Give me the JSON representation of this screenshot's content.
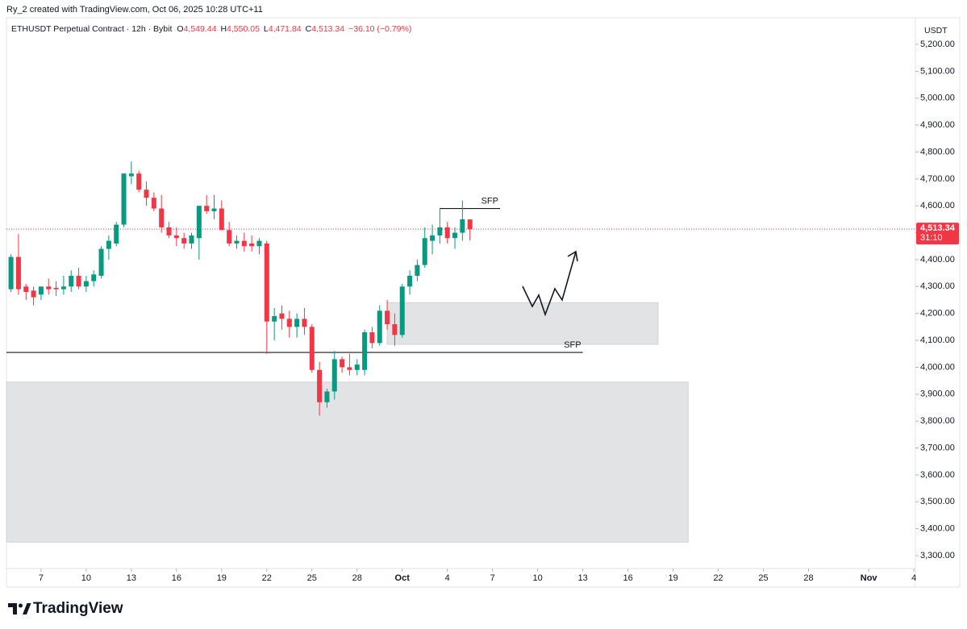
{
  "header": {
    "credit": "Ry_2 created with TradingView.com, Oct 06, 2025 10:28 UTC+11",
    "symbol": "ETHUSDT Perpetual Contract · 12h · Bybit",
    "ohlc": [
      {
        "key": "O",
        "value": "4,549.44"
      },
      {
        "key": "H",
        "value": "4,550.05"
      },
      {
        "key": "L",
        "value": "4,471.84"
      },
      {
        "key": "C",
        "value": "4,513.34"
      }
    ],
    "change": "−36.10 (−0.79%)"
  },
  "footer": "TradingView",
  "chart_data": {
    "type": "candlestick",
    "currency": "USDT",
    "up_color": "#089981",
    "down_color": "#f23645",
    "x": [
      5,
      5.5,
      6,
      6.5,
      7,
      7.5,
      8,
      8.5,
      9,
      9.5,
      10,
      10.5,
      11,
      11.5,
      12,
      12.5,
      13,
      13.5,
      14,
      14.5,
      15,
      15.5,
      16,
      16.5,
      17,
      17.5,
      18,
      18.5,
      19,
      19.5,
      20,
      20.5,
      21,
      21.5,
      22,
      22.5,
      23,
      23.5,
      24,
      24.5,
      25,
      25.5,
      26,
      26.5,
      27,
      27.5,
      28,
      28.5,
      29,
      29.5,
      30,
      30.5,
      31,
      31.5,
      32,
      32.5,
      33,
      33.5,
      34,
      34.5,
      35,
      35.5
    ],
    "open": [
      4290,
      4410,
      4300,
      4285,
      4270,
      4300,
      4295,
      4290,
      4300,
      4340,
      4300,
      4320,
      4340,
      4440,
      4460,
      4530,
      4710,
      4720,
      4660,
      4630,
      4590,
      4520,
      4490,
      4480,
      4460,
      4480,
      4600,
      4580,
      4590,
      4510,
      4460,
      4470,
      4460,
      4450,
      4460,
      4170,
      4200,
      4180,
      4150,
      4180,
      4150,
      3990,
      3870,
      3910,
      4030,
      4000,
      3990,
      3990,
      4130,
      4090,
      4210,
      4160,
      4120,
      4300,
      4340,
      4380,
      4470,
      4490,
      4520,
      4480,
      4500,
      4549.44
    ],
    "high": [
      4420,
      4495,
      4310,
      4300,
      4300,
      4330,
      4320,
      4340,
      4360,
      4370,
      4340,
      4360,
      4450,
      4490,
      4540,
      4720,
      4765,
      4730,
      4690,
      4650,
      4640,
      4540,
      4520,
      4500,
      4500,
      4600,
      4640,
      4640,
      4620,
      4540,
      4490,
      4500,
      4490,
      4480,
      4470,
      4220,
      4230,
      4210,
      4200,
      4220,
      4160,
      4020,
      3920,
      4060,
      4040,
      4050,
      4030,
      4140,
      4150,
      4230,
      4250,
      4200,
      4310,
      4360,
      4400,
      4520,
      4530,
      4590,
      4540,
      4520,
      4620,
      4550.05
    ],
    "low": [
      4280,
      4270,
      4250,
      4230,
      4250,
      4270,
      4265,
      4270,
      4280,
      4290,
      4280,
      4300,
      4330,
      4400,
      4450,
      4520,
      4680,
      4650,
      4600,
      4580,
      4500,
      4480,
      4450,
      4440,
      4440,
      4400,
      4570,
      4550,
      4510,
      4450,
      4440,
      4430,
      4430,
      4420,
      4050,
      4100,
      4140,
      4110,
      4110,
      4120,
      3980,
      3820,
      3850,
      3880,
      3980,
      3970,
      3970,
      3970,
      4070,
      4080,
      4140,
      4080,
      4110,
      4270,
      4320,
      4370,
      4420,
      4460,
      4460,
      4440,
      4470,
      4471.84
    ],
    "close": [
      4410,
      4290,
      4280,
      4260,
      4300,
      4290,
      4290,
      4300,
      4340,
      4300,
      4320,
      4345,
      4440,
      4470,
      4530,
      4720,
      4720,
      4660,
      4630,
      4590,
      4520,
      4490,
      4480,
      4460,
      4490,
      4600,
      4580,
      4590,
      4510,
      4460,
      4470,
      4450,
      4450,
      4470,
      4170,
      4190,
      4180,
      4150,
      4180,
      4150,
      3990,
      3870,
      3910,
      4030,
      4000,
      3990,
      4010,
      4130,
      4090,
      4210,
      4160,
      4120,
      4300,
      4340,
      4380,
      4480,
      4490,
      4520,
      4480,
      4500,
      4550,
      4513.34
    ],
    "last_price_label": "4,513.34",
    "countdown": "31:10",
    "zones": [
      {
        "x": [
          4.7,
          50
        ],
        "y": [
          3350,
          3945
        ]
      },
      {
        "x": [
          30,
          48
        ],
        "y": [
          4085,
          4240
        ]
      }
    ],
    "levels": [
      {
        "label": "SFP",
        "value": 4055,
        "x": [
          4.7,
          43
        ]
      },
      {
        "label": "SFP",
        "value": 4590,
        "x": [
          33.5,
          37.5
        ]
      }
    ],
    "xlim": [
      4.7,
      65.1
    ],
    "xticks": [
      7,
      10,
      13,
      16,
      19,
      22,
      25,
      28,
      {
        "value": 31,
        "label": "Oct"
      },
      {
        "value": 34,
        "label": "4"
      },
      {
        "value": 37,
        "label": "7"
      },
      {
        "value": 40,
        "label": "10"
      },
      {
        "value": 43,
        "label": "13"
      },
      {
        "value": 46,
        "label": "16"
      },
      {
        "value": 49,
        "label": "19"
      },
      {
        "value": 52,
        "label": "22"
      },
      {
        "value": 55,
        "label": "25"
      },
      {
        "value": 58,
        "label": "28"
      },
      {
        "value": 62,
        "label": "Nov"
      },
      {
        "value": 65,
        "label": "4"
      }
    ],
    "ylim": [
      3252,
      5299
    ],
    "yticks": [
      {
        "value": 3300,
        "label": "3,300.00"
      },
      {
        "value": 3400,
        "label": "3,400.00"
      },
      {
        "value": 3500,
        "label": "3,500.00"
      },
      {
        "value": 3600,
        "label": "3,600.00"
      },
      {
        "value": 3700,
        "label": "3,700.00"
      },
      {
        "value": 3800,
        "label": "3,800.00"
      },
      {
        "value": 3900,
        "label": "3,900.00"
      },
      {
        "value": 4000,
        "label": "4,000.00"
      },
      {
        "value": 4100,
        "label": "4,100.00"
      },
      {
        "value": 4200,
        "label": "4,200.00"
      },
      {
        "value": 4300,
        "label": "4,300.00"
      },
      {
        "value": 4400,
        "label": "4,400.00"
      },
      {
        "value": 4500,
        "label": "4,500.00"
      },
      {
        "value": 4600,
        "label": "4,600.00"
      },
      {
        "value": 4700,
        "label": "4,700.00"
      },
      {
        "value": 4800,
        "label": "4,800.00"
      },
      {
        "value": 4900,
        "label": "4,900.00"
      },
      {
        "value": 5000,
        "label": "5,000.00"
      },
      {
        "value": 5100,
        "label": "5,100.00"
      },
      {
        "value": 5200,
        "label": "5,200.00"
      }
    ]
  }
}
